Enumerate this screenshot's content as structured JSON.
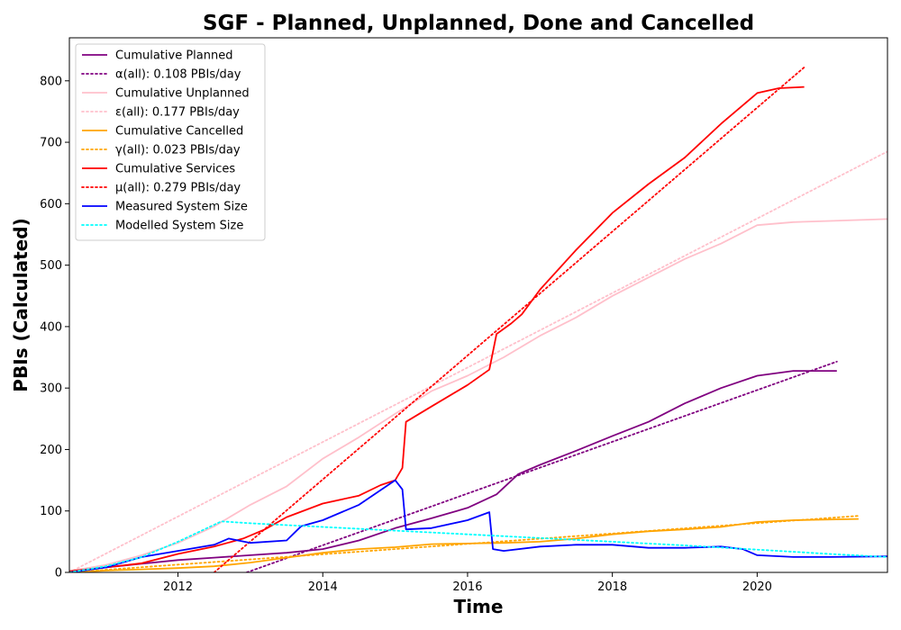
{
  "chart_data": {
    "type": "line",
    "title": "SGF - Planned, Unplanned, Done  and Cancelled",
    "xlabel": "Time",
    "ylabel": "PBIs (Calculated)",
    "xlim": [
      2010.5,
      2021.8
    ],
    "ylim": [
      0,
      870
    ],
    "x_ticks": [
      "2012",
      "2014",
      "2016",
      "2018",
      "2020"
    ],
    "x_tick_values": [
      2012,
      2014,
      2016,
      2018,
      2020
    ],
    "y_ticks": [
      0,
      100,
      200,
      300,
      400,
      500,
      600,
      700,
      800
    ],
    "grid": false,
    "legend_position": "top-left",
    "series": [
      {
        "name": "Cumulative Planned",
        "style": "solid",
        "color": "#800080",
        "x": [
          2010.5,
          2011.0,
          2011.5,
          2012.0,
          2012.5,
          2013.0,
          2013.5,
          2014.0,
          2014.5,
          2015.0,
          2015.5,
          2016.0,
          2016.4,
          2016.7,
          2017.0,
          2017.5,
          2018.0,
          2018.5,
          2019.0,
          2019.5,
          2020.0,
          2020.5,
          2021.1
        ],
        "y": [
          2,
          8,
          14,
          20,
          24,
          28,
          32,
          38,
          52,
          72,
          88,
          105,
          127,
          160,
          175,
          198,
          222,
          245,
          275,
          300,
          320,
          328,
          328
        ]
      },
      {
        "name": "α(all): 0.108 PBIs/day",
        "style": "dotted",
        "color": "#800080",
        "x": [
          2012.95,
          2021.1
        ],
        "y": [
          0,
          343
        ]
      },
      {
        "name": "Cumulative Unplanned",
        "style": "solid",
        "color": "#ffc0cb",
        "x": [
          2010.5,
          2011.0,
          2011.5,
          2012.0,
          2012.5,
          2013.0,
          2013.5,
          2014.0,
          2014.5,
          2015.0,
          2015.5,
          2016.0,
          2016.5,
          2017.0,
          2017.5,
          2018.0,
          2018.5,
          2019.0,
          2019.5,
          2020.0,
          2020.5,
          2021.0,
          2021.8
        ],
        "y": [
          2,
          12,
          28,
          48,
          75,
          110,
          140,
          185,
          220,
          258,
          295,
          320,
          350,
          385,
          415,
          450,
          480,
          510,
          535,
          565,
          570,
          572,
          575
        ]
      },
      {
        "name": "ε(all): 0.177 PBIs/day",
        "style": "dotted",
        "color": "#ffc0cb",
        "x": [
          2010.5,
          2021.8
        ],
        "y": [
          0,
          685
        ]
      },
      {
        "name": "Cumulative Cancelled",
        "style": "solid",
        "color": "#ffa500",
        "x": [
          2010.5,
          2011.0,
          2011.5,
          2012.0,
          2012.5,
          2013.0,
          2013.5,
          2014.0,
          2014.5,
          2015.0,
          2015.5,
          2016.0,
          2016.5,
          2017.0,
          2017.5,
          2018.0,
          2018.5,
          2019.0,
          2019.5,
          2020.0,
          2020.5,
          2021.4
        ],
        "y": [
          0,
          3,
          5,
          7,
          10,
          16,
          24,
          32,
          38,
          41,
          46,
          47,
          48,
          50,
          55,
          62,
          67,
          70,
          74,
          82,
          85,
          87
        ]
      },
      {
        "name": "γ(all): 0.023 PBIs/day",
        "style": "dotted",
        "color": "#ffa500",
        "x": [
          2010.5,
          2021.4
        ],
        "y": [
          0,
          92
        ]
      },
      {
        "name": "Cumulative Services",
        "style": "solid",
        "color": "#ff0000",
        "x": [
          2010.5,
          2011.0,
          2011.5,
          2012.0,
          2012.5,
          2012.9,
          2013.2,
          2013.5,
          2014.0,
          2014.5,
          2014.8,
          2015.0,
          2015.1,
          2015.15,
          2015.5,
          2016.0,
          2016.3,
          2016.4,
          2016.6,
          2016.75,
          2017.0,
          2017.5,
          2018.0,
          2018.5,
          2019.0,
          2019.5,
          2020.0,
          2020.3,
          2020.65
        ],
        "y": [
          2,
          8,
          15,
          30,
          42,
          55,
          70,
          90,
          112,
          125,
          142,
          150,
          170,
          245,
          270,
          305,
          330,
          388,
          405,
          420,
          460,
          525,
          585,
          632,
          675,
          730,
          780,
          788,
          790
        ]
      },
      {
        "name": "μ(all): 0.279 PBIs/day",
        "style": "dotted",
        "color": "#ff0000",
        "x": [
          2012.5,
          2020.65
        ],
        "y": [
          0,
          822
        ]
      },
      {
        "name": "Measured System Size",
        "style": "solid",
        "color": "#0000ff",
        "x": [
          2010.5,
          2011.0,
          2011.5,
          2012.0,
          2012.5,
          2012.7,
          2013.0,
          2013.5,
          2013.7,
          2014.0,
          2014.5,
          2015.0,
          2015.1,
          2015.15,
          2015.5,
          2016.0,
          2016.3,
          2016.35,
          2016.5,
          2017.0,
          2017.5,
          2018.0,
          2018.5,
          2019.0,
          2019.5,
          2019.8,
          2020.0,
          2020.5,
          2021.0,
          2021.8
        ],
        "y": [
          0,
          8,
          25,
          35,
          45,
          55,
          48,
          52,
          75,
          85,
          110,
          150,
          135,
          70,
          72,
          85,
          98,
          38,
          35,
          42,
          45,
          45,
          40,
          40,
          42,
          38,
          28,
          25,
          25,
          26
        ]
      },
      {
        "name": "Modelled System Size",
        "style": "dotted",
        "color": "#00ffff",
        "x": [
          2010.5,
          2011.0,
          2011.5,
          2012.0,
          2012.6,
          2013.0,
          2014.0,
          2015.0,
          2016.0,
          2017.0,
          2018.0,
          2019.0,
          2020.0,
          2021.0,
          2021.8
        ],
        "y": [
          0,
          10,
          25,
          50,
          83,
          80,
          74,
          68,
          62,
          56,
          50,
          44,
          37,
          30,
          25
        ]
      }
    ]
  }
}
